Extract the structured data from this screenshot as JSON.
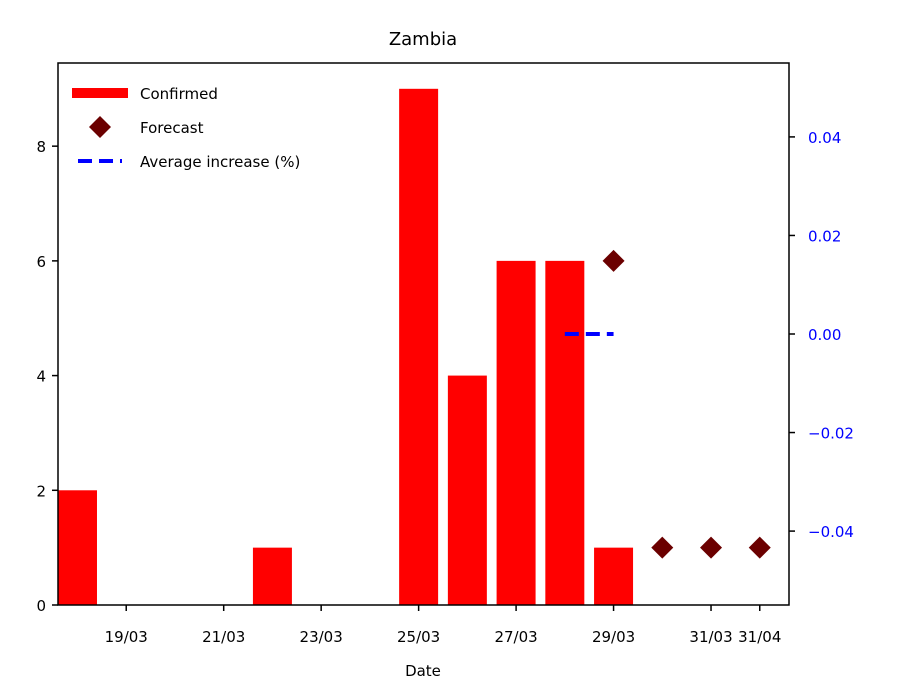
{
  "chart_data": {
    "type": "bar",
    "title": "Zambia",
    "xlabel": "Date",
    "ylabel": "",
    "x_range_days": [
      17.6,
      32.6
    ],
    "ylim": [
      0,
      9.45
    ],
    "yticks": [
      0,
      2,
      4,
      6,
      8
    ],
    "xticks": [
      {
        "day": 19,
        "label": "19/03"
      },
      {
        "day": 21,
        "label": "21/03"
      },
      {
        "day": 23,
        "label": "23/03"
      },
      {
        "day": 25,
        "label": "25/03"
      },
      {
        "day": 27,
        "label": "27/03"
      },
      {
        "day": 29,
        "label": "29/03"
      },
      {
        "day": 31,
        "label": "31/03"
      },
      {
        "day": 32,
        "label": "31/04"
      }
    ],
    "y2lim": [
      -0.055,
      0.055
    ],
    "y2ticks": [
      -0.04,
      -0.02,
      0.0,
      0.02,
      0.04
    ],
    "y2tick_labels": [
      "−0.04",
      "−0.02",
      "0.00",
      "0.02",
      "0.04"
    ],
    "legend_position": "top-left",
    "series": [
      {
        "name": "Confirmed",
        "kind": "bar",
        "color": "#ff0000",
        "points": [
          {
            "day": 18,
            "value": 2
          },
          {
            "day": 22,
            "value": 1
          },
          {
            "day": 25,
            "value": 9
          },
          {
            "day": 26,
            "value": 4
          },
          {
            "day": 27,
            "value": 6
          },
          {
            "day": 28,
            "value": 6
          },
          {
            "day": 29,
            "value": 1
          }
        ]
      },
      {
        "name": "Forecast",
        "kind": "scatter",
        "marker": "diamond",
        "color": "#6b0000",
        "points": [
          {
            "day": 29,
            "value": 6
          },
          {
            "day": 30,
            "value": 1
          },
          {
            "day": 31,
            "value": 1
          },
          {
            "day": 32,
            "value": 1
          }
        ]
      },
      {
        "name": "Average increase (%)",
        "kind": "line",
        "dash": true,
        "axis": "right",
        "color": "#0000ff",
        "points": [
          {
            "day": 28,
            "value": 0.0
          },
          {
            "day": 29,
            "value": 0.0
          }
        ]
      }
    ]
  }
}
